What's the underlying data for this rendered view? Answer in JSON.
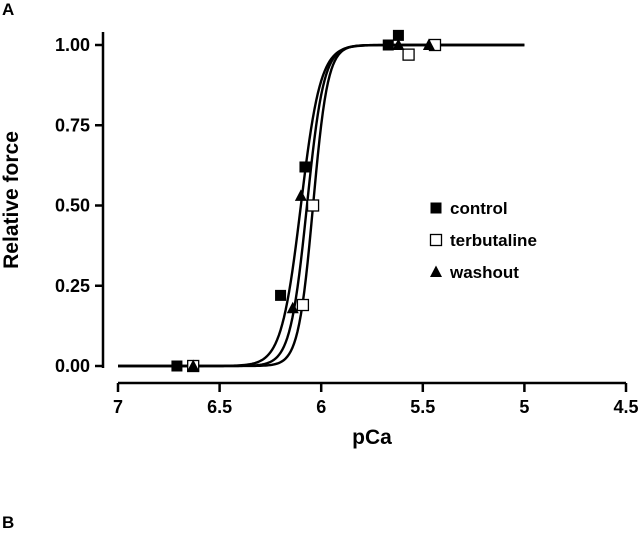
{
  "panel_labels": {
    "a": "A",
    "b": "B"
  },
  "chart_data": {
    "type": "scatter",
    "title": "",
    "xlabel": "pCa",
    "ylabel": "Relative force",
    "xlim": [
      7,
      4.5
    ],
    "ylim": [
      0,
      1
    ],
    "x_reversed": true,
    "x_ticks": [
      7,
      6.5,
      6,
      5.5,
      5,
      4.5
    ],
    "x_tick_labels": [
      "7",
      "6.5",
      "6",
      "5.5",
      "5",
      "4.5"
    ],
    "y_ticks": [
      0,
      0.25,
      0.5,
      0.75,
      1.0
    ],
    "y_tick_labels": [
      "0.00",
      "0.25",
      "0.50",
      "0.75",
      "1.00"
    ],
    "grid": false,
    "legend_position": "right-center",
    "series": [
      {
        "name": "control",
        "marker": "filled-square",
        "color": "#000000",
        "points": [
          {
            "x": 6.71,
            "y": 0.0
          },
          {
            "x": 6.2,
            "y": 0.22
          },
          {
            "x": 6.08,
            "y": 0.62
          },
          {
            "x": 5.67,
            "y": 1.0
          },
          {
            "x": 5.62,
            "y": 1.03
          }
        ],
        "fit": {
          "pCa50": 6.1,
          "hill": 9.0
        }
      },
      {
        "name": "terbutaline",
        "marker": "open-square",
        "color": "#000000",
        "points": [
          {
            "x": 6.63,
            "y": 0.0
          },
          {
            "x": 6.09,
            "y": 0.19
          },
          {
            "x": 6.04,
            "y": 0.5
          },
          {
            "x": 5.57,
            "y": 0.97
          },
          {
            "x": 5.44,
            "y": 1.0
          }
        ],
        "fit": {
          "pCa50": 6.04,
          "hill": 12.0
        }
      },
      {
        "name": "washout",
        "marker": "filled-triangle",
        "color": "#000000",
        "points": [
          {
            "x": 6.63,
            "y": 0.0
          },
          {
            "x": 6.14,
            "y": 0.18
          },
          {
            "x": 6.1,
            "y": 0.53
          },
          {
            "x": 5.62,
            "y": 1.0
          },
          {
            "x": 5.47,
            "y": 1.0
          }
        ],
        "fit": {
          "pCa50": 6.07,
          "hill": 10.5
        }
      }
    ],
    "fit_range": [
      7,
      5
    ]
  }
}
